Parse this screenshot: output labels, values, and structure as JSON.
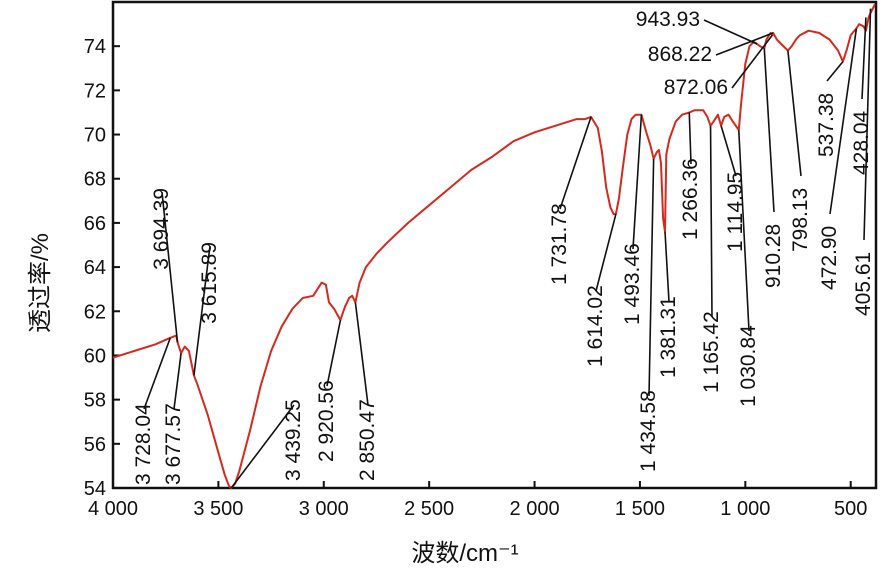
{
  "chart_data": {
    "type": "line",
    "xlabel": "波数/cm⁻¹",
    "ylabel": "透过率/%",
    "x_reversed": true,
    "xlim": [
      4000,
      380
    ],
    "ylim": [
      54,
      76
    ],
    "x_ticks": [
      4000,
      3500,
      3000,
      2500,
      2000,
      1500,
      1000,
      500
    ],
    "x_tick_labels": [
      "4 000",
      "3 500",
      "3 000",
      "2 500",
      "2 000",
      "1 500",
      "1 000",
      "500"
    ],
    "y_ticks": [
      54,
      56,
      58,
      60,
      62,
      64,
      66,
      68,
      70,
      72,
      74
    ],
    "y_tick_labels": [
      "54",
      "56",
      "58",
      "60",
      "62",
      "64",
      "66",
      "68",
      "70",
      "72",
      "74"
    ],
    "series_color": "#d42a1e",
    "grid": false,
    "legend": "none",
    "series": [
      {
        "x": [
          4000,
          3900,
          3800,
          3728,
          3700,
          3694,
          3677,
          3660,
          3640,
          3616,
          3600,
          3550,
          3500,
          3470,
          3450,
          3439,
          3420,
          3400,
          3350,
          3300,
          3250,
          3200,
          3150,
          3100,
          3050,
          3010,
          2990,
          2975,
          2950,
          2921,
          2900,
          2880,
          2865,
          2850,
          2830,
          2800,
          2750,
          2700,
          2600,
          2500,
          2400,
          2300,
          2200,
          2100,
          2000,
          1900,
          1800,
          1760,
          1732,
          1700,
          1680,
          1660,
          1640,
          1625,
          1614,
          1600,
          1580,
          1560,
          1540,
          1520,
          1493,
          1470,
          1450,
          1435,
          1420,
          1410,
          1400,
          1390,
          1381,
          1375,
          1360,
          1330,
          1300,
          1266,
          1240,
          1200,
          1180,
          1165,
          1150,
          1130,
          1115,
          1100,
          1080,
          1060,
          1031,
          1020,
          1000,
          980,
          960,
          944,
          930,
          910,
          900,
          880,
          872,
          868,
          850,
          830,
          798,
          780,
          760,
          740,
          700,
          650,
          600,
          560,
          537,
          520,
          500,
          473,
          460,
          440,
          428,
          415,
          406,
          395,
          385
        ],
        "y": [
          59.9,
          60.2,
          60.5,
          60.8,
          60.9,
          60.6,
          60.1,
          60.4,
          60.2,
          59.1,
          58.7,
          57.3,
          55.6,
          54.6,
          54.1,
          54.0,
          54.2,
          54.8,
          56.6,
          58.6,
          60.2,
          61.3,
          62.1,
          62.6,
          62.7,
          63.3,
          63.2,
          62.4,
          62.1,
          61.6,
          62.2,
          62.6,
          62.7,
          62.4,
          63.3,
          64.0,
          64.6,
          65.1,
          66.0,
          66.8,
          67.6,
          68.4,
          69.0,
          69.7,
          70.1,
          70.4,
          70.7,
          70.7,
          70.8,
          70.3,
          69.2,
          67.6,
          66.7,
          66.4,
          66.4,
          67.1,
          68.6,
          70.0,
          70.7,
          70.9,
          70.9,
          70.1,
          69.5,
          68.9,
          69.2,
          69.3,
          68.7,
          66.2,
          65.6,
          69.1,
          69.8,
          70.6,
          70.9,
          71.0,
          71.1,
          71.1,
          70.8,
          70.4,
          70.6,
          70.9,
          70.4,
          70.8,
          70.9,
          70.6,
          70.2,
          71.4,
          73.2,
          74.0,
          74.2,
          74.1,
          74.0,
          73.9,
          74.3,
          74.6,
          74.5,
          74.6,
          74.3,
          74.1,
          73.8,
          74.0,
          74.3,
          74.5,
          74.7,
          74.6,
          74.3,
          73.8,
          73.3,
          73.8,
          74.5,
          74.8,
          75.0,
          74.9,
          74.7,
          75.3,
          75.5,
          75.7,
          75.9
        ]
      }
    ],
    "annotations": [
      {
        "label": "3 728.04",
        "x": 3728,
        "y": 60.8
      },
      {
        "label": "3 694.39",
        "x": 3694,
        "y": 60.6
      },
      {
        "label": "3 677.57",
        "x": 3677,
        "y": 60.1
      },
      {
        "label": "3 615.89",
        "x": 3616,
        "y": 59.1
      },
      {
        "label": "3 439.25",
        "x": 3439,
        "y": 54.0
      },
      {
        "label": "2 920.56",
        "x": 2921,
        "y": 61.6
      },
      {
        "label": "2 850.47",
        "x": 2850,
        "y": 62.4
      },
      {
        "label": "1 731.78",
        "x": 1732,
        "y": 70.8
      },
      {
        "label": "1 614.02",
        "x": 1614,
        "y": 66.4
      },
      {
        "label": "1 493.46",
        "x": 1493,
        "y": 70.9
      },
      {
        "label": "1 434.58",
        "x": 1435,
        "y": 68.9
      },
      {
        "label": "1 381.31",
        "x": 1381,
        "y": 65.6
      },
      {
        "label": "1 266.36",
        "x": 1266,
        "y": 71.0
      },
      {
        "label": "1 165.42",
        "x": 1165,
        "y": 70.4
      },
      {
        "label": "1 114.95",
        "x": 1115,
        "y": 70.4
      },
      {
        "label": "1 030.84",
        "x": 1031,
        "y": 70.2
      },
      {
        "label": "943.93",
        "x": 944,
        "y": 74.1
      },
      {
        "label": "910.28",
        "x": 910,
        "y": 73.9
      },
      {
        "label": "872.06",
        "x": 872,
        "y": 74.5
      },
      {
        "label": "868.22",
        "x": 868,
        "y": 74.6
      },
      {
        "label": "798.13",
        "x": 798,
        "y": 73.8
      },
      {
        "label": "537.38",
        "x": 537,
        "y": 73.3
      },
      {
        "label": "472.90",
        "x": 473,
        "y": 74.8
      },
      {
        "label": "428.04",
        "x": 428,
        "y": 75.3
      },
      {
        "label": "405.61",
        "x": 406,
        "y": 75.7
      }
    ]
  }
}
